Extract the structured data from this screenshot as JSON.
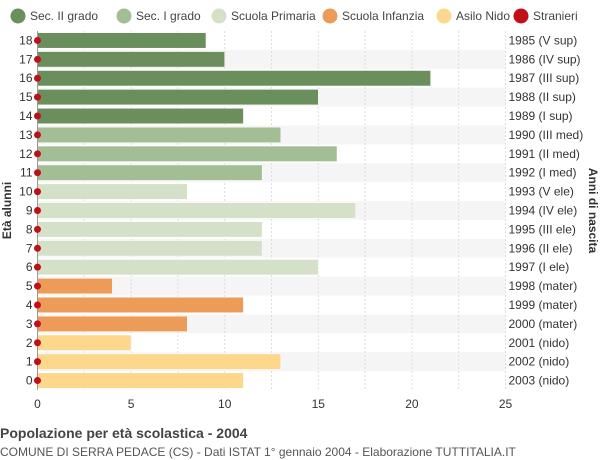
{
  "chart_data": {
    "type": "bar",
    "orientation": "horizontal",
    "legend": [
      {
        "name": "Sec. II grado",
        "color": "#6a8f5c"
      },
      {
        "name": "Sec. I grado",
        "color": "#a3bd95"
      },
      {
        "name": "Scuola Primaria",
        "color": "#d5e0c8"
      },
      {
        "name": "Scuola Infanzia",
        "color": "#ec9c58"
      },
      {
        "name": "Asilo Nido",
        "color": "#fdd88c"
      },
      {
        "name": "Stranieri",
        "color": "#c0111a"
      }
    ],
    "legend_position": "top",
    "xlabel": "",
    "ylabel": "Età alunni",
    "ylabel_right": "Anni di nascita",
    "xlim": [
      0,
      25
    ],
    "xticks": [
      0,
      5,
      10,
      15,
      20,
      25
    ],
    "grid": true,
    "rows": [
      {
        "age": "18",
        "birth": "1985 (V sup)",
        "value": 9,
        "group": 0,
        "stranieri": 0
      },
      {
        "age": "17",
        "birth": "1986 (IV sup)",
        "value": 10,
        "group": 0,
        "stranieri": 0
      },
      {
        "age": "16",
        "birth": "1987 (III sup)",
        "value": 21,
        "group": 0,
        "stranieri": 0
      },
      {
        "age": "15",
        "birth": "1988 (II sup)",
        "value": 15,
        "group": 0,
        "stranieri": 0
      },
      {
        "age": "14",
        "birth": "1989 (I sup)",
        "value": 11,
        "group": 0,
        "stranieri": 0
      },
      {
        "age": "13",
        "birth": "1990 (III med)",
        "value": 13,
        "group": 1,
        "stranieri": 0
      },
      {
        "age": "12",
        "birth": "1991 (II med)",
        "value": 16,
        "group": 1,
        "stranieri": 0
      },
      {
        "age": "11",
        "birth": "1992 (I med)",
        "value": 12,
        "group": 1,
        "stranieri": 0
      },
      {
        "age": "10",
        "birth": "1993 (V ele)",
        "value": 8,
        "group": 2,
        "stranieri": 0
      },
      {
        "age": "9",
        "birth": "1994 (IV ele)",
        "value": 17,
        "group": 2,
        "stranieri": 0
      },
      {
        "age": "8",
        "birth": "1995 (III ele)",
        "value": 12,
        "group": 2,
        "stranieri": 0
      },
      {
        "age": "7",
        "birth": "1996 (II ele)",
        "value": 12,
        "group": 2,
        "stranieri": 0
      },
      {
        "age": "6",
        "birth": "1997 (I ele)",
        "value": 15,
        "group": 2,
        "stranieri": 0
      },
      {
        "age": "5",
        "birth": "1998 (mater)",
        "value": 4,
        "group": 3,
        "stranieri": 0
      },
      {
        "age": "4",
        "birth": "1999 (mater)",
        "value": 11,
        "group": 3,
        "stranieri": 0
      },
      {
        "age": "3",
        "birth": "2000 (mater)",
        "value": 8,
        "group": 3,
        "stranieri": 0
      },
      {
        "age": "2",
        "birth": "2001 (nido)",
        "value": 5,
        "group": 4,
        "stranieri": 0
      },
      {
        "age": "1",
        "birth": "2002 (nido)",
        "value": 13,
        "group": 4,
        "stranieri": 0
      },
      {
        "age": "0",
        "birth": "2003 (nido)",
        "value": 11,
        "group": 4,
        "stranieri": 0
      }
    ]
  },
  "caption": {
    "title": "Popolazione per età scolastica - 2004",
    "subtitle": "COMUNE DI SERRA PEDACE (CS) - Dati ISTAT 1° gennaio 2004 - Elaborazione TUTTITALIA.IT"
  }
}
